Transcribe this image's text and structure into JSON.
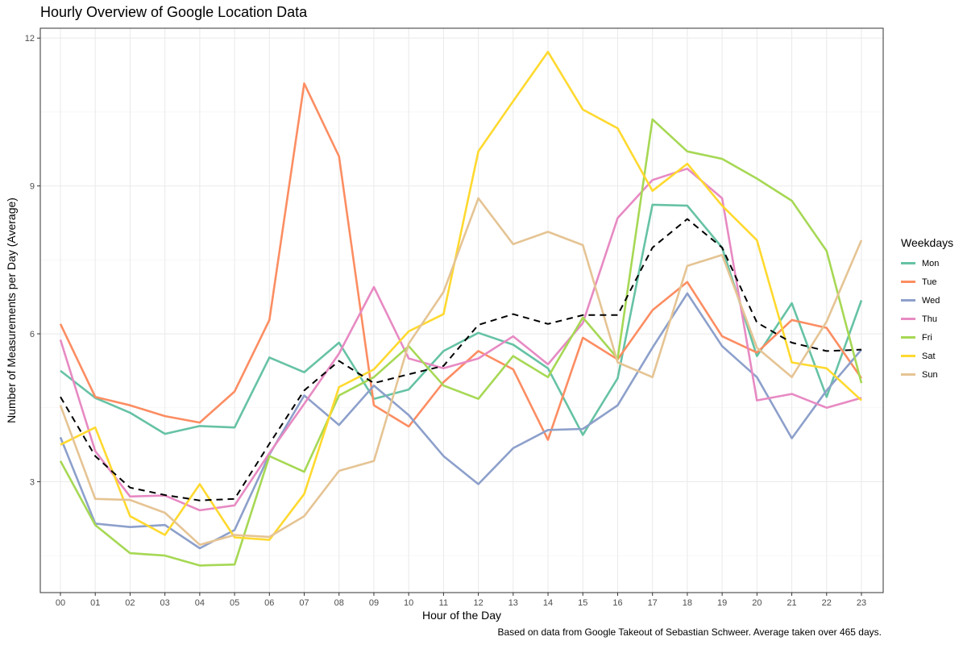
{
  "chart_data": {
    "type": "line",
    "title": "Hourly Overview of Google Location Data",
    "xlabel": "Hour of the Day",
    "ylabel": "Number of Measurements per Day (Average)",
    "caption": "Based on data from Google Takeout of Sebastian Schweer. Average taken over 465 days.",
    "legend_title": "Weekdays",
    "legend_position": "right",
    "grid": true,
    "ylim": [
      0.75,
      12.2
    ],
    "y_ticks": [
      3,
      6,
      9,
      12
    ],
    "categories": [
      "00",
      "01",
      "02",
      "03",
      "04",
      "05",
      "06",
      "07",
      "08",
      "09",
      "10",
      "11",
      "12",
      "13",
      "14",
      "15",
      "16",
      "17",
      "18",
      "19",
      "20",
      "21",
      "22",
      "23"
    ],
    "series": [
      {
        "name": "Mon",
        "color": "#66c2a5",
        "values": [
          5.25,
          4.7,
          4.4,
          3.97,
          4.13,
          4.1,
          5.52,
          5.22,
          5.82,
          4.68,
          4.87,
          5.65,
          6.02,
          5.78,
          5.3,
          3.95,
          5.1,
          8.62,
          8.6,
          7.75,
          5.55,
          6.62,
          4.72,
          6.68
        ]
      },
      {
        "name": "Tue",
        "color": "#fc8d62",
        "values": [
          6.2,
          4.72,
          4.55,
          4.33,
          4.2,
          4.83,
          6.28,
          11.08,
          9.6,
          4.55,
          4.12,
          5.02,
          5.65,
          5.28,
          3.85,
          5.92,
          5.48,
          6.48,
          7.05,
          5.95,
          5.62,
          6.28,
          6.12,
          5.1
        ]
      },
      {
        "name": "Wed",
        "color": "#8da0cb",
        "values": [
          3.9,
          2.15,
          2.08,
          2.12,
          1.65,
          2.02,
          3.55,
          4.75,
          4.15,
          4.95,
          4.35,
          3.52,
          2.95,
          3.68,
          4.05,
          4.07,
          4.55,
          5.72,
          6.82,
          5.75,
          5.12,
          3.88,
          4.85,
          5.68
        ]
      },
      {
        "name": "Thu",
        "color": "#e78ac3",
        "values": [
          5.88,
          3.62,
          2.7,
          2.72,
          2.42,
          2.52,
          3.58,
          4.58,
          5.6,
          6.95,
          5.5,
          5.3,
          5.5,
          5.95,
          5.38,
          6.22,
          8.35,
          9.12,
          9.35,
          8.75,
          4.65,
          4.78,
          4.5,
          4.7
        ]
      },
      {
        "name": "Fri",
        "color": "#a6d854",
        "values": [
          3.42,
          2.12,
          1.55,
          1.5,
          1.3,
          1.32,
          3.52,
          3.2,
          4.75,
          5.12,
          5.75,
          4.95,
          4.68,
          5.55,
          5.12,
          6.33,
          5.5,
          10.35,
          9.7,
          9.55,
          9.15,
          8.7,
          7.68,
          5.0
        ]
      },
      {
        "name": "Sat",
        "color": "#ffd92f",
        "values": [
          3.75,
          4.1,
          2.3,
          1.92,
          2.95,
          1.87,
          1.82,
          2.75,
          4.92,
          5.28,
          6.05,
          6.4,
          9.7,
          10.72,
          11.72,
          10.55,
          10.17,
          8.9,
          9.45,
          8.6,
          7.9,
          5.42,
          5.3,
          4.65
        ]
      },
      {
        "name": "Sun",
        "color": "#e5c494",
        "values": [
          4.55,
          2.65,
          2.63,
          2.37,
          1.72,
          1.92,
          1.88,
          2.3,
          3.22,
          3.42,
          5.8,
          6.85,
          8.75,
          7.82,
          8.07,
          7.8,
          5.42,
          5.12,
          7.38,
          7.6,
          5.72,
          5.12,
          6.25,
          7.9
        ]
      },
      {
        "name": "",
        "color": "#000000",
        "dashed": true,
        "values": [
          4.72,
          3.52,
          2.88,
          2.73,
          2.62,
          2.65,
          3.77,
          4.85,
          5.45,
          5.0,
          5.18,
          5.35,
          6.18,
          6.4,
          6.2,
          6.38,
          6.38,
          7.75,
          8.33,
          7.75,
          6.23,
          5.82,
          5.65,
          5.68
        ]
      }
    ]
  }
}
